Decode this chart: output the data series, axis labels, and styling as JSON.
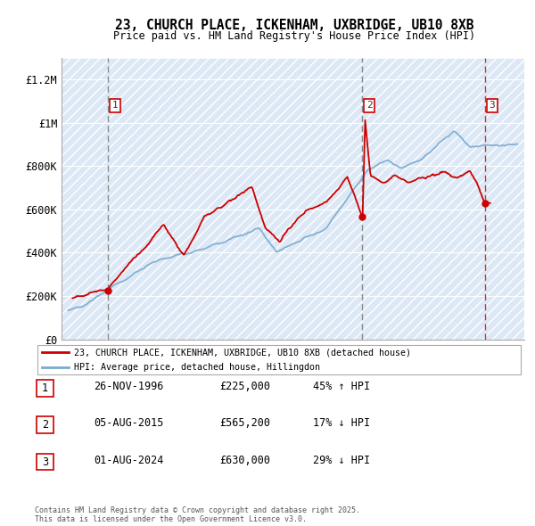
{
  "title1": "23, CHURCH PLACE, ICKENHAM, UXBRIDGE, UB10 8XB",
  "title2": "Price paid vs. HM Land Registry's House Price Index (HPI)",
  "ylabel_ticks": [
    "£0",
    "£200K",
    "£400K",
    "£600K",
    "£800K",
    "£1M",
    "£1.2M"
  ],
  "ytick_values": [
    0,
    200000,
    400000,
    600000,
    800000,
    1000000,
    1200000
  ],
  "ylim": [
    0,
    1300000
  ],
  "xlim_start": 1993.5,
  "xlim_end": 2027.5,
  "sale_dates": [
    1996.92,
    2015.6,
    2024.6
  ],
  "sale_prices": [
    225000,
    565200,
    630000
  ],
  "sale_labels": [
    "1",
    "2",
    "3"
  ],
  "sale_vline_colors": [
    "#888888",
    "#888888",
    "#cc0000"
  ],
  "legend_line1": "23, CHURCH PLACE, ICKENHAM, UXBRIDGE, UB10 8XB (detached house)",
  "legend_line2": "HPI: Average price, detached house, Hillingdon",
  "table_rows": [
    [
      "1",
      "26-NOV-1996",
      "£225,000",
      "45% ↑ HPI"
    ],
    [
      "2",
      "05-AUG-2015",
      "£565,200",
      "17% ↓ HPI"
    ],
    [
      "3",
      "01-AUG-2024",
      "£630,000",
      "29% ↓ HPI"
    ]
  ],
  "footnote": "Contains HM Land Registry data © Crown copyright and database right 2025.\nThis data is licensed under the Open Government Licence v3.0.",
  "red_color": "#cc0000",
  "blue_color": "#7aaad0",
  "bg_color": "#dce8f5",
  "grid_color": "#ffffff"
}
